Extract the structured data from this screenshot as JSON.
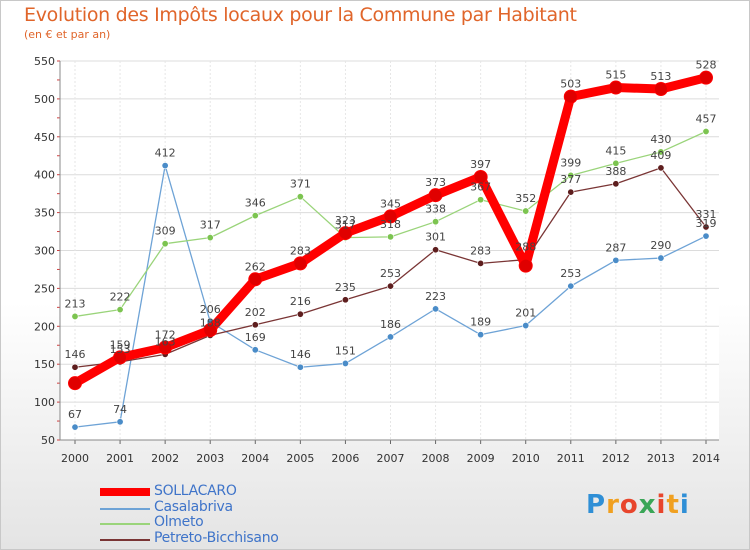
{
  "header": {
    "title": "Evolution des Impôts locaux pour la Commune par Habitant",
    "subtitle": "(en € et par an)"
  },
  "logo": {
    "text": "Proxiti",
    "letters": [
      "P",
      "r",
      "o",
      "x",
      "i",
      "t",
      "i"
    ],
    "colors": [
      "#2f8fd6",
      "#f0a020",
      "#e8452c",
      "#3aa657",
      "#e8452c",
      "#f0a020",
      "#2f8fd6"
    ]
  },
  "chart_data": {
    "type": "line",
    "title": "Evolution des Impôts locaux pour la Commune par Habitant",
    "subtitle": "(en € et par an)",
    "xlabel": "",
    "ylabel": "",
    "x": [
      2000,
      2001,
      2002,
      2003,
      2004,
      2005,
      2006,
      2007,
      2008,
      2009,
      2010,
      2011,
      2012,
      2013,
      2014
    ],
    "ylim": [
      50,
      550
    ],
    "yticks": [
      50,
      100,
      150,
      200,
      250,
      300,
      350,
      400,
      450,
      500,
      550
    ],
    "grid": true,
    "legend": "bottom-left",
    "series": [
      {
        "name": "SOLLACARO",
        "color": "#ff0000",
        "marker": "#e00000",
        "values": [
          125,
          159,
          172,
          195,
          262,
          283,
          323,
          345,
          373,
          397,
          280,
          503,
          515,
          513,
          528
        ],
        "labels": [
          "",
          "159",
          "172",
          "",
          "262",
          "283",
          "323",
          "345",
          "373",
          "397",
          "",
          "503",
          "515",
          "513",
          "528"
        ]
      },
      {
        "name": "Casalabriva",
        "color": "#6ea3d6",
        "marker": "#4a8cc8",
        "values": [
          67,
          74,
          412,
          206,
          169,
          146,
          151,
          186,
          223,
          189,
          201,
          253,
          287,
          290,
          319
        ],
        "labels": [
          "67",
          "74",
          "412",
          "206",
          "169",
          "146",
          "151",
          "186",
          "223",
          "189",
          "201",
          "253",
          "287",
          "290",
          "319"
        ]
      },
      {
        "name": "Olmeto",
        "color": "#9ad47a",
        "marker": "#7cc450",
        "values": [
          213,
          222,
          309,
          317,
          346,
          371,
          317,
          318,
          338,
          367,
          352,
          399,
          415,
          430,
          457
        ],
        "labels": [
          "213",
          "222",
          "309",
          "317",
          "346",
          "371",
          "317",
          "318",
          "338",
          "367",
          "352",
          "399",
          "415",
          "430",
          "457"
        ]
      },
      {
        "name": "Petreto-Bicchisano",
        "color": "#7a3535",
        "marker": "#5e1e1e",
        "values": [
          146,
          153,
          163,
          188,
          202,
          216,
          235,
          253,
          301,
          283,
          288,
          377,
          388,
          409,
          331
        ],
        "labels": [
          "146",
          "153",
          "163",
          "188",
          "202",
          "216",
          "235",
          "253",
          "301",
          "283",
          "288",
          "377",
          "388",
          "409",
          "331"
        ]
      }
    ]
  }
}
